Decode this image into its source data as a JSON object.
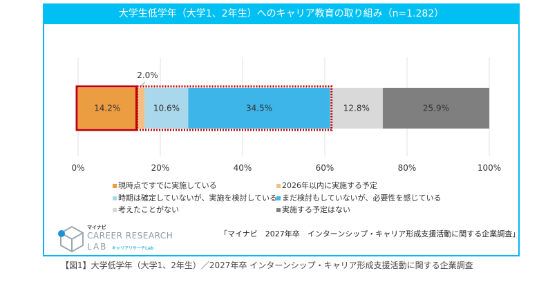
{
  "chart_data": {
    "type": "bar",
    "orientation": "horizontal-stacked",
    "title": "大学生低学年（大学1、2年生）へのキャリア教育の取り組み（n=1.282）",
    "categories": [
      "現時点ですでに実施している",
      "2026年以内に実施する予定",
      "時期は確定していないが、実施を検討している",
      "まだ検討もしていないが、必要性を感じている",
      "考えたことがない",
      "実施する予定はない"
    ],
    "values": [
      14.2,
      2.0,
      10.6,
      34.5,
      12.8,
      25.9
    ],
    "labels": [
      "14.2%",
      "2.0%",
      "10.6%",
      "34.5%",
      "12.8%",
      "25.9%"
    ],
    "colors": [
      "#ec9c41",
      "#f5be85",
      "#a9d8ec",
      "#3db5e8",
      "#d9d9d9",
      "#7f7f7f"
    ],
    "xlim": [
      0,
      100
    ],
    "xticks": [
      "0%",
      "20%",
      "40%",
      "60%",
      "80%",
      "100%"
    ],
    "grid": true,
    "legend_position": "bottom",
    "highlight_colors": {
      "solid": "#c00000",
      "dotted": "#c00000"
    }
  },
  "source": "「マイナビ　2027年卒　インターンシップ・キャリア形成支援活動に関する企業調査」",
  "caption": "【図1】大学低学年（大学1、2年生）／2027年卒 インターンシップ・キャリア形成支援活動に関する企業調査",
  "logo": {
    "kana": "マイナビ",
    "line1": "CAREER RESEARCH",
    "line2": "LAB",
    "line3": "キャリアリサーチLab"
  }
}
